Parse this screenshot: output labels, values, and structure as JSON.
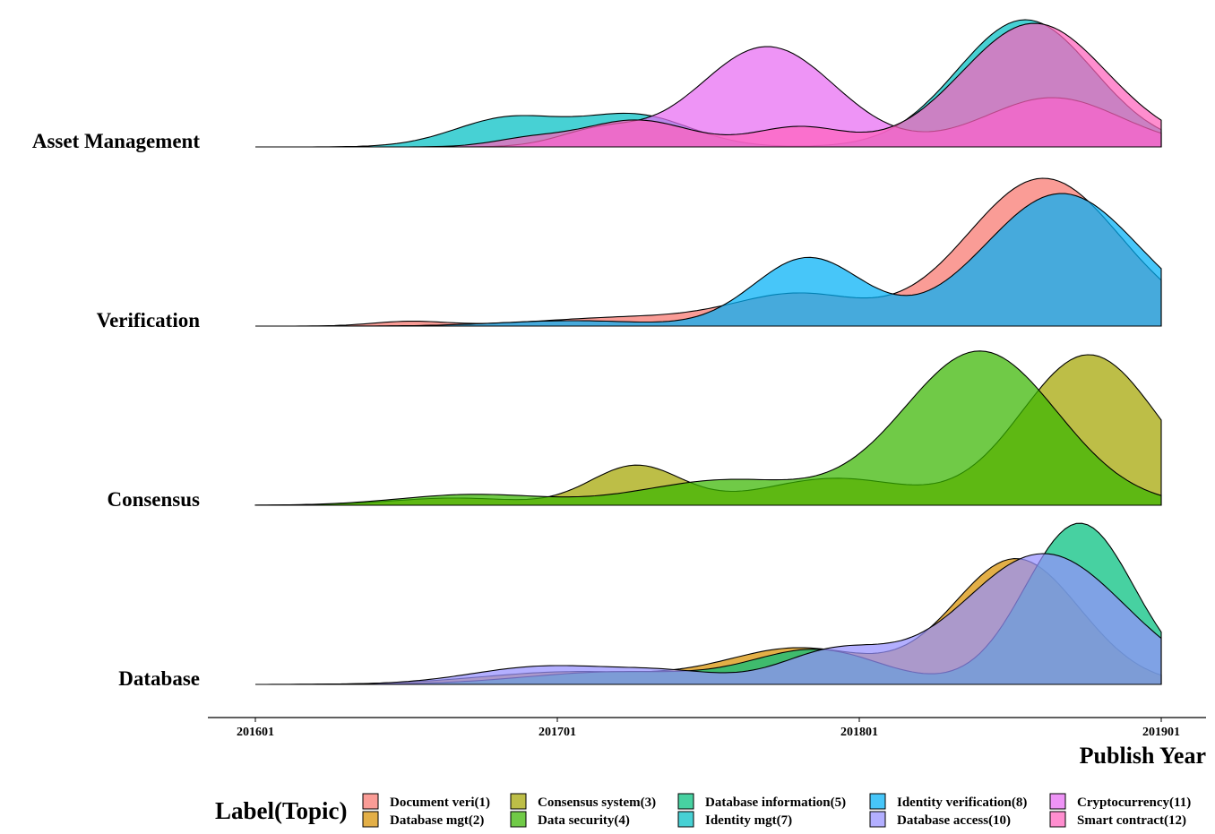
{
  "chart_data": {
    "type": "ridgeline",
    "xlabel": "Publish Year",
    "x_ticks": [
      "201601",
      "201701",
      "201801",
      "201901"
    ],
    "xlim": [
      201601,
      201901
    ],
    "legend_title": "Label(Topic)",
    "legend_position": "bottom",
    "rows": [
      {
        "label": "Asset Management",
        "series": [
          {
            "name": "Cryptocurrency(11)",
            "color": "#E76BF3"
          },
          {
            "name": "Identity mgt(7)",
            "color": "#00BFC4"
          },
          {
            "name": "Smart contract(12)",
            "color": "#FF62BC"
          }
        ]
      },
      {
        "label": "Verification",
        "series": [
          {
            "name": "Document veri(1)",
            "color": "#F8766D"
          },
          {
            "name": "Identity verification(8)",
            "color": "#00B0F6"
          }
        ]
      },
      {
        "label": "Consensus",
        "series": [
          {
            "name": "Consensus system(3)",
            "color": "#A3A500"
          },
          {
            "name": "Data security(4)",
            "color": "#39B600"
          }
        ]
      },
      {
        "label": "Database",
        "series": [
          {
            "name": "Database mgt(2)",
            "color": "#D89000"
          },
          {
            "name": "Database information(5)",
            "color": "#00BF7D"
          },
          {
            "name": "Database access(10)",
            "color": "#9590FF"
          }
        ]
      }
    ],
    "legend": [
      {
        "name": "Document veri(1)",
        "color": "#F8766D"
      },
      {
        "name": "Database mgt(2)",
        "color": "#D89000"
      },
      {
        "name": "Consensus system(3)",
        "color": "#A3A500"
      },
      {
        "name": "Data security(4)",
        "color": "#39B600"
      },
      {
        "name": "Database information(5)",
        "color": "#00BF7D"
      },
      {
        "name": "Identity mgt(7)",
        "color": "#00BFC4"
      },
      {
        "name": "Identity verification(8)",
        "color": "#00B0F6"
      },
      {
        "name": "Database access(10)",
        "color": "#9590FF"
      },
      {
        "name": "Cryptocurrency(11)",
        "color": "#E76BF3"
      },
      {
        "name": "Smart contract(12)",
        "color": "#FF62BC"
      }
    ]
  }
}
